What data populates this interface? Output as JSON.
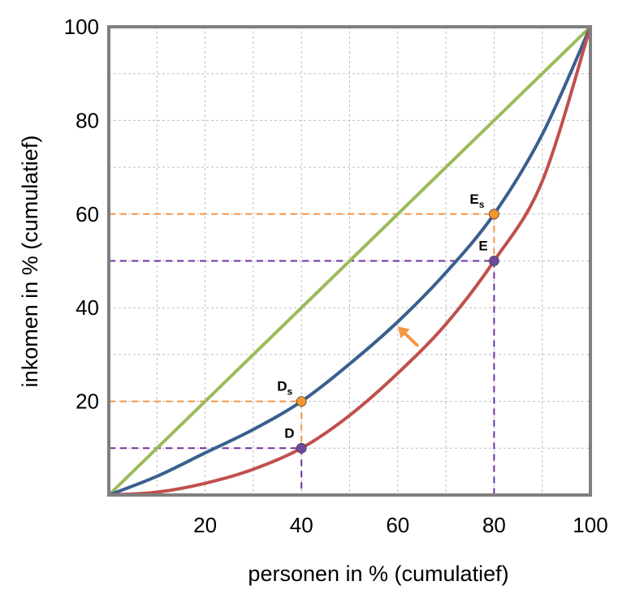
{
  "colors": {
    "equality": "#9BBB59",
    "after_tax": "#3A5F8F",
    "before_tax": "#C0504D",
    "orange_guides": "#F79646",
    "purple_guides": "#7030A0",
    "orange_point": "#F7962A",
    "purple_point": "#6E4A9E",
    "arrow": "#F79646",
    "frame": "#7F7F7F",
    "grid": "#BFBFBF"
  },
  "chart_data": {
    "type": "line",
    "xlabel": "personen in % (cumulatief)",
    "ylabel": "inkomen in % (cumulatief)",
    "xlim": [
      0,
      100
    ],
    "ylim": [
      0,
      100
    ],
    "x_ticks": [
      "20",
      "40",
      "60",
      "80",
      "100"
    ],
    "y_ticks": [
      "20",
      "40",
      "60",
      "80",
      "100"
    ],
    "grid": true,
    "series": [
      {
        "key": "equality",
        "x": [
          0,
          100
        ],
        "y": [
          0,
          100
        ]
      },
      {
        "key": "after_tax",
        "x": [
          0,
          10,
          20,
          30,
          40,
          50,
          60,
          70,
          80,
          90,
          100
        ],
        "y": [
          0,
          4,
          9,
          14,
          20,
          28,
          37,
          47.5,
          60,
          77,
          100
        ]
      },
      {
        "key": "before_tax",
        "x": [
          0,
          10,
          20,
          30,
          40,
          50,
          60,
          70,
          80,
          90,
          100
        ],
        "y": [
          0,
          0.6,
          2.5,
          5.5,
          10,
          17,
          26,
          36.5,
          50,
          67,
          100
        ]
      }
    ],
    "points": [
      {
        "label": "D",
        "sub": "s",
        "x": 40,
        "y": 20,
        "key": "orange"
      },
      {
        "label": "D",
        "sub": "",
        "x": 40,
        "y": 10,
        "key": "purple"
      },
      {
        "label": "E",
        "sub": "s",
        "x": 80,
        "y": 60,
        "key": "orange"
      },
      {
        "label": "E",
        "sub": "",
        "x": 80,
        "y": 50,
        "key": "purple"
      }
    ],
    "arrow": {
      "from": [
        64,
        32
      ],
      "to": [
        60,
        36
      ]
    }
  }
}
